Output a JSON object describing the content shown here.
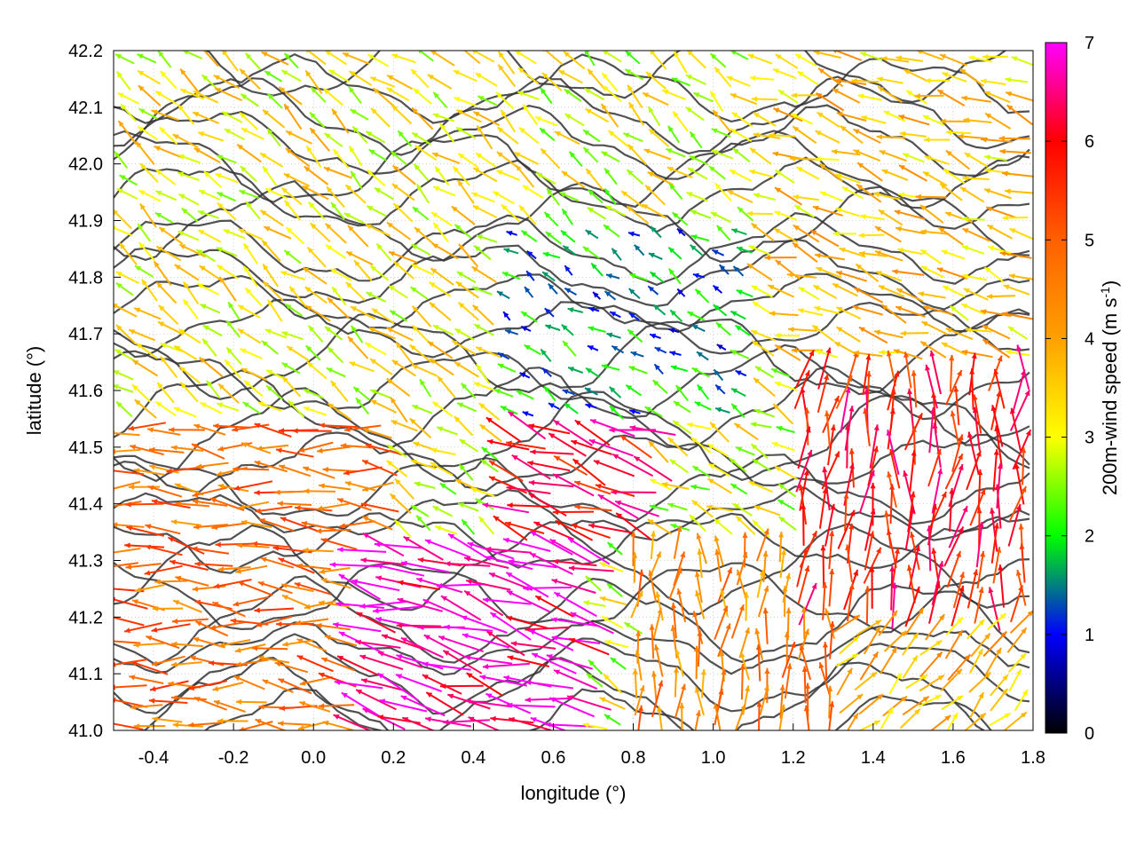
{
  "chart_data": {
    "type": "vector-field",
    "xlabel": "longitude (°)",
    "ylabel": "latitude (°)",
    "xlim": [
      -0.5,
      1.8
    ],
    "ylim": [
      41.0,
      42.2
    ],
    "xticks": [
      "-0.4",
      "-0.2",
      "0.0",
      "0.2",
      "0.4",
      "0.6",
      "0.8",
      "1.0",
      "1.2",
      "1.4",
      "1.6",
      "1.8"
    ],
    "xtick_values": [
      -0.4,
      -0.2,
      0.0,
      0.2,
      0.4,
      0.6,
      0.8,
      1.0,
      1.2,
      1.4,
      1.6,
      1.8
    ],
    "yticks": [
      "41.0",
      "41.1",
      "41.2",
      "41.3",
      "41.4",
      "41.5",
      "41.6",
      "41.7",
      "41.8",
      "41.9",
      "42.0",
      "42.1",
      "42.2"
    ],
    "ytick_values": [
      41.0,
      41.1,
      41.2,
      41.3,
      41.4,
      41.5,
      41.6,
      41.7,
      41.8,
      41.9,
      42.0,
      42.1,
      42.2
    ],
    "grid": true,
    "colorbar": {
      "label": "200m-wind speed (m s",
      "label_sup": "-1",
      "label_end": ")",
      "range": [
        0,
        7
      ],
      "ticks": [
        "0",
        "1",
        "2",
        "3",
        "4",
        "5",
        "6",
        "7"
      ],
      "tick_values": [
        0,
        1,
        2,
        3,
        4,
        5,
        6,
        7
      ],
      "stops": [
        {
          "value": 0,
          "color": "#000000"
        },
        {
          "value": 1,
          "color": "#0000ff"
        },
        {
          "value": 2,
          "color": "#00ff00"
        },
        {
          "value": 3,
          "color": "#ffff00"
        },
        {
          "value": 4,
          "color": "#ffa000"
        },
        {
          "value": 5,
          "color": "#ff6000"
        },
        {
          "value": 6,
          "color": "#ff0000"
        },
        {
          "value": 7,
          "color": "#ff00ff"
        }
      ]
    },
    "wind_regions": [
      {
        "lon": [
          -0.5,
          0.2
        ],
        "lat": [
          41.0,
          41.55
        ],
        "u": -1.0,
        "v": 0.08,
        "speed": 4.8
      },
      {
        "lon": [
          0.1,
          0.7
        ],
        "lat": [
          41.0,
          41.35
        ],
        "u": -1.0,
        "v": 0.25,
        "speed": 6.8
      },
      {
        "lon": [
          0.45,
          0.85
        ],
        "lat": [
          41.35,
          41.55
        ],
        "u": -1.0,
        "v": 0.35,
        "speed": 6.0
      },
      {
        "lon": [
          -0.5,
          0.45
        ],
        "lat": [
          41.55,
          42.2
        ],
        "u": -0.7,
        "v": 0.55,
        "speed": 3.2
      },
      {
        "lon": [
          0.45,
          1.1
        ],
        "lat": [
          41.55,
          41.9
        ],
        "u": -0.3,
        "v": 0.2,
        "speed": 1.6
      },
      {
        "lon": [
          0.45,
          1.2
        ],
        "lat": [
          41.9,
          42.2
        ],
        "u": -0.6,
        "v": 0.5,
        "speed": 3.0
      },
      {
        "lon": [
          1.1,
          1.8
        ],
        "lat": [
          41.65,
          42.2
        ],
        "u": -0.9,
        "v": 0.3,
        "speed": 3.6
      },
      {
        "lon": [
          0.8,
          1.4
        ],
        "lat": [
          41.0,
          41.35
        ],
        "u": 0.05,
        "v": 1.0,
        "speed": 4.5
      },
      {
        "lon": [
          1.3,
          1.8
        ],
        "lat": [
          41.0,
          41.2
        ],
        "u": 0.7,
        "v": 0.7,
        "speed": 3.8
      },
      {
        "lon": [
          1.2,
          1.8
        ],
        "lat": [
          41.2,
          41.65
        ],
        "u": 0.1,
        "v": 1.0,
        "speed": 5.8
      }
    ]
  }
}
